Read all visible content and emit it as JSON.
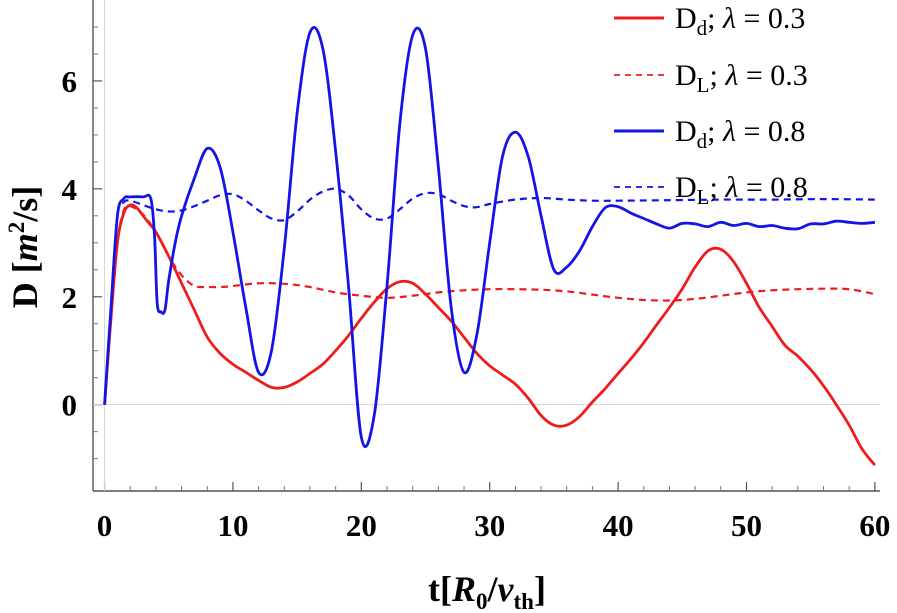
{
  "chart_data": {
    "type": "line",
    "xlabel": "t[R0/vth]",
    "ylabel": "D [m2/s]",
    "xlim": [
      -0.9,
      60.4
    ],
    "ylim": [
      -1.6,
      7.5
    ],
    "xticks": [
      0,
      10,
      20,
      30,
      40,
      50,
      60
    ],
    "yticks": [
      0,
      2,
      4,
      6
    ],
    "xtick_labels": [
      "0",
      "10",
      "20",
      "30",
      "40",
      "50",
      "60"
    ],
    "ytick_labels": [
      "0",
      "2",
      "4",
      "6"
    ],
    "grid": false,
    "zero_line": true,
    "legend_placement": "top-right",
    "series": [
      {
        "name": "Dd; λ = 0.3",
        "color": "#ee1c1c",
        "dash": "solid",
        "x": [
          0,
          0.5,
          1,
          1.5,
          2,
          2.5,
          3,
          3.5,
          4,
          5,
          6,
          7,
          8,
          9,
          10,
          11,
          12,
          13,
          14,
          15,
          16,
          17,
          18,
          19,
          20,
          21,
          22,
          23,
          24,
          25,
          26,
          27,
          28,
          29,
          30,
          31,
          32,
          33,
          34,
          35,
          36,
          37,
          38,
          39,
          40,
          41,
          42,
          43,
          44,
          45,
          46,
          47,
          48,
          49,
          50,
          51,
          52,
          53,
          54,
          55,
          56,
          57,
          58,
          59,
          60
        ],
        "y": [
          0.0,
          1.6,
          3.0,
          3.55,
          3.7,
          3.65,
          3.5,
          3.35,
          3.2,
          2.75,
          2.25,
          1.75,
          1.25,
          0.95,
          0.75,
          0.6,
          0.45,
          0.32,
          0.32,
          0.42,
          0.58,
          0.75,
          1.0,
          1.28,
          1.6,
          1.9,
          2.15,
          2.28,
          2.25,
          2.05,
          1.8,
          1.55,
          1.25,
          0.95,
          0.72,
          0.55,
          0.38,
          0.12,
          -0.2,
          -0.38,
          -0.38,
          -0.22,
          0.05,
          0.3,
          0.58,
          0.85,
          1.15,
          1.48,
          1.8,
          2.15,
          2.55,
          2.85,
          2.88,
          2.65,
          2.25,
          1.8,
          1.45,
          1.1,
          0.9,
          0.65,
          0.35,
          0.0,
          -0.38,
          -0.82,
          -1.12
        ]
      },
      {
        "name": "DL; λ = 0.3",
        "color": "#ee1c1c",
        "dash": "dashed",
        "x": [
          0,
          0.5,
          1,
          1.5,
          2,
          3,
          4,
          5,
          6,
          7,
          8,
          9,
          10,
          12,
          14,
          16,
          18,
          20,
          22,
          24,
          26,
          28,
          30,
          32,
          34,
          36,
          38,
          40,
          42,
          44,
          46,
          48,
          50,
          52,
          54,
          56,
          58,
          60
        ],
        "y": [
          0.0,
          1.6,
          3.0,
          3.6,
          3.68,
          3.52,
          3.2,
          2.75,
          2.4,
          2.2,
          2.18,
          2.18,
          2.2,
          2.25,
          2.24,
          2.18,
          2.08,
          2.02,
          1.98,
          2.02,
          2.08,
          2.12,
          2.14,
          2.14,
          2.13,
          2.1,
          2.04,
          1.98,
          1.94,
          1.93,
          1.96,
          2.02,
          2.08,
          2.12,
          2.14,
          2.15,
          2.14,
          2.05
        ]
      },
      {
        "name": "Dd; λ = 0.8",
        "color": "#1414e6",
        "dash": "solid",
        "x": [
          0,
          0.5,
          1,
          1.5,
          2,
          3,
          3.6,
          3.9,
          4.1,
          4.4,
          4.7,
          5,
          5.5,
          6,
          7,
          8,
          9,
          10,
          11,
          12,
          13,
          14,
          15,
          16,
          17,
          18,
          19,
          20,
          21,
          22,
          23,
          24,
          25,
          26,
          27,
          28,
          29,
          30,
          31,
          32,
          33,
          34,
          35,
          36,
          37,
          38,
          39,
          40,
          41,
          42,
          43,
          44,
          45,
          46,
          47,
          48,
          49,
          50,
          51,
          52,
          53,
          54,
          55,
          56,
          57,
          58,
          59,
          60
        ],
        "y": [
          0.0,
          1.8,
          3.5,
          3.82,
          3.85,
          3.85,
          3.82,
          3.1,
          1.88,
          1.72,
          1.75,
          2.3,
          3.0,
          3.5,
          4.2,
          4.75,
          4.4,
          3.2,
          1.8,
          0.6,
          1.0,
          2.9,
          5.4,
          6.9,
          6.6,
          4.7,
          2.2,
          -0.6,
          -0.2,
          2.2,
          5.2,
          6.85,
          6.6,
          4.4,
          1.8,
          0.6,
          1.3,
          3.0,
          4.6,
          5.05,
          4.6,
          3.5,
          2.5,
          2.55,
          2.85,
          3.3,
          3.65,
          3.67,
          3.55,
          3.45,
          3.35,
          3.27,
          3.36,
          3.35,
          3.3,
          3.38,
          3.32,
          3.36,
          3.3,
          3.32,
          3.27,
          3.26,
          3.35,
          3.35,
          3.4,
          3.38,
          3.36,
          3.38
        ]
      },
      {
        "name": "DL; λ = 0.8",
        "color": "#1414e6",
        "dash": "dashed",
        "x": [
          0,
          0.5,
          1,
          1.5,
          2,
          3,
          4,
          5,
          6,
          7,
          8,
          9,
          10,
          11,
          12,
          13,
          14,
          15,
          16,
          17,
          18,
          19,
          20,
          21,
          22,
          23,
          24,
          25,
          26,
          27,
          28,
          29,
          30,
          32,
          34,
          36,
          38,
          40,
          44,
          48,
          52,
          56,
          60
        ],
        "y": [
          0.0,
          1.8,
          3.5,
          3.75,
          3.78,
          3.7,
          3.62,
          3.58,
          3.6,
          3.68,
          3.78,
          3.88,
          3.9,
          3.78,
          3.6,
          3.45,
          3.42,
          3.58,
          3.8,
          3.95,
          4.0,
          3.88,
          3.62,
          3.45,
          3.45,
          3.62,
          3.82,
          3.92,
          3.9,
          3.78,
          3.68,
          3.66,
          3.72,
          3.8,
          3.83,
          3.8,
          3.78,
          3.78,
          3.79,
          3.8,
          3.8,
          3.81,
          3.8
        ]
      }
    ]
  }
}
